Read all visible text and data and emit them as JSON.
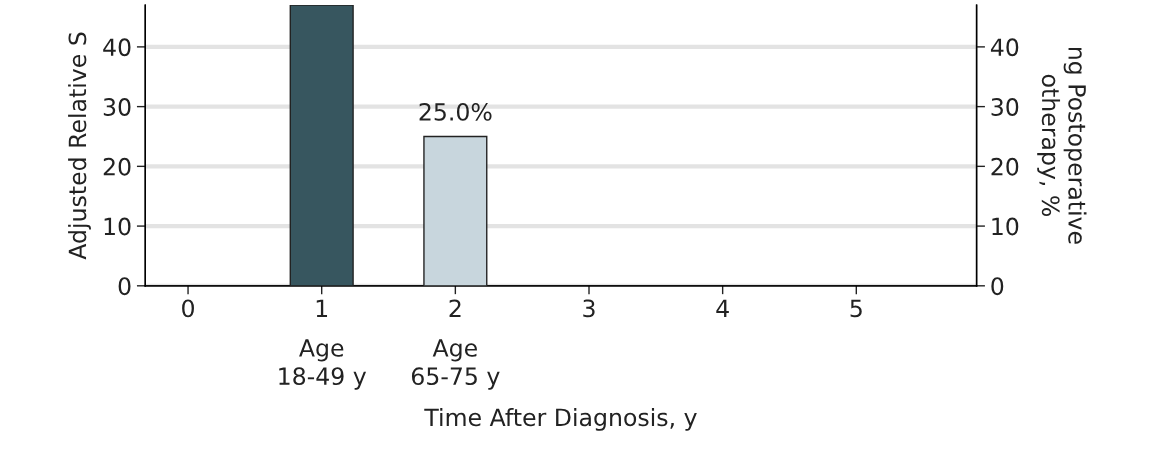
{
  "chart_data": {
    "type": "bar",
    "xlabel": "Time After Diagnosis, y",
    "ylabel": "Adjusted Relative S",
    "y2label": "ng Postoperative\notherapy, %",
    "x": [
      1,
      2
    ],
    "series": [
      {
        "axis": "y2",
        "values": [
          47,
          25.0
        ],
        "colors": [
          "#37565f",
          "#c8d6dd"
        ],
        "value_labels": [
          null,
          "25.0%"
        ]
      }
    ],
    "xlim": [
      -0.32,
      5.9
    ],
    "xticks": [
      0,
      1,
      2,
      3,
      4,
      5
    ],
    "ylim": [
      0,
      47
    ],
    "yticks": [
      0,
      10,
      20,
      30,
      40
    ],
    "y2lim": [
      0,
      47
    ],
    "y2ticks": [
      0,
      10,
      20,
      30,
      40
    ],
    "grid": "y",
    "annotations": [
      {
        "text": "Age\n18-49 y",
        "x": 1,
        "y": 0
      },
      {
        "text": "Age\n65-75 y",
        "x": 2,
        "y": 0
      }
    ]
  }
}
